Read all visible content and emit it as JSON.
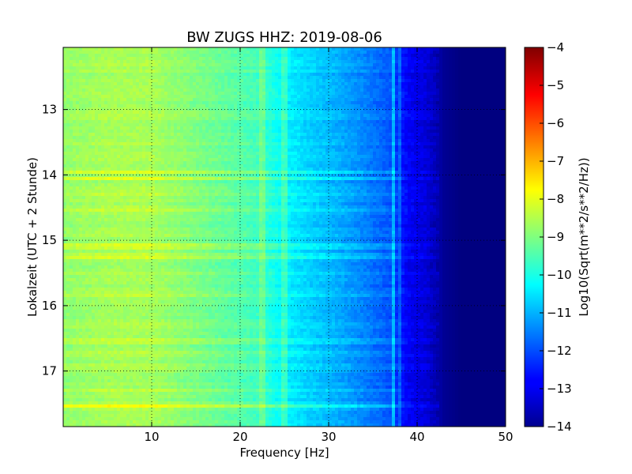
{
  "chart_data": {
    "type": "heatmap",
    "title": "BW ZUGS HHZ: 2019-08-06",
    "xlabel": "Frequency [Hz]",
    "ylabel": "Lokalzeit (UTC + 2 Stunde)",
    "xlim": [
      0,
      50
    ],
    "ylim": [
      12.05,
      17.85
    ],
    "y_inverted": true,
    "xticks": [
      10,
      20,
      30,
      40,
      50
    ],
    "yticks": [
      13,
      14,
      15,
      16,
      17
    ],
    "grid": true,
    "colorbar": {
      "label": "Log10(Sqrt(m**2/s**2/Hz))",
      "range": [
        -14,
        -4
      ],
      "ticks": [
        -4,
        -5,
        -6,
        -7,
        -8,
        -9,
        -10,
        -11,
        -12,
        -13,
        -14
      ],
      "colormap": "jet"
    },
    "spectral_profile": {
      "frequency_hz": [
        0,
        5,
        10,
        15,
        20,
        22,
        25,
        28,
        30,
        33,
        35,
        37,
        38,
        39,
        40,
        41,
        42,
        43,
        45,
        50
      ],
      "log_level": [
        -8.8,
        -8.6,
        -8.6,
        -9.0,
        -9.4,
        -9.6,
        -10.3,
        -10.7,
        -10.9,
        -11.3,
        -11.6,
        -11.9,
        -12.4,
        -12.8,
        -13.0,
        -13.1,
        -13.4,
        -13.8,
        -14.0,
        -14.0
      ]
    },
    "line_features": {
      "frequency_hz": [
        22.5,
        25.0,
        37.3,
        38.0
      ],
      "offset": [
        0.5,
        0.6,
        1.1,
        0.6
      ]
    },
    "time_events": {
      "time_h": [
        13.95,
        14.05,
        14.3,
        14.55,
        15.1,
        15.2,
        15.25,
        15.85,
        16.55,
        16.7,
        17.3,
        17.55
      ],
      "offset": [
        0.6,
        0.7,
        0.4,
        0.35,
        0.5,
        0.4,
        0.45,
        0.35,
        0.3,
        0.35,
        0.4,
        0.9
      ]
    }
  }
}
